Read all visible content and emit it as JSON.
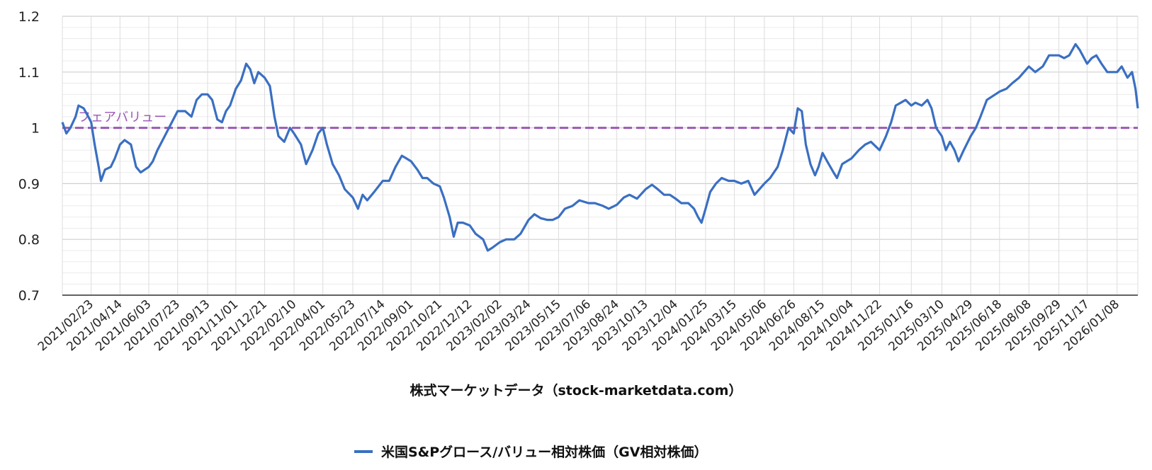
{
  "chart_data": {
    "type": "line",
    "xlabel": "株式マーケットデータ（stock-marketdata.com）",
    "ylabel": "",
    "ylim": [
      0.7,
      1.2
    ],
    "yticks": [
      "0.7",
      "0.8",
      "0.9",
      "1",
      "1.1",
      "1.2"
    ],
    "grid": true,
    "legend_position": "bottom",
    "x_tick_labels": [
      "2021/02/23",
      "2021/04/14",
      "2021/06/03",
      "2021/07/23",
      "2021/09/13",
      "2021/11/01",
      "2021/12/21",
      "2022/02/10",
      "2022/04/01",
      "2022/05/23",
      "2022/07/14",
      "2022/09/01",
      "2022/10/21",
      "2022/12/12",
      "2023/02/02",
      "2023/03/24",
      "2023/05/15",
      "2023/07/06",
      "2023/08/24",
      "2023/10/13",
      "2023/12/04",
      "2024/01/25",
      "2024/03/15",
      "2024/05/06",
      "2024/06/26",
      "2024/08/15",
      "2024/10/04",
      "2024/11/22",
      "2025/01/16",
      "2025/03/10",
      "2025/04/29",
      "2025/06/18",
      "2025/08/08",
      "2025/09/29",
      "2025/11/17",
      "2026/01/08"
    ],
    "reference_line": {
      "value": 1,
      "label": "フェアバリュー",
      "color": "#9b59b6"
    },
    "series": [
      {
        "name": "米国S&Pグロース/バリュー相対株価（GV相対株価）",
        "color": "#3a6fc2",
        "points": [
          [
            "2021/01/04",
            1.01
          ],
          [
            "2021/01/11",
            0.99
          ],
          [
            "2021/01/18",
            1.0
          ],
          [
            "2021/01/27",
            1.02
          ],
          [
            "2021/02/01",
            1.04
          ],
          [
            "2021/02/10",
            1.035
          ],
          [
            "2021/02/18",
            1.02
          ],
          [
            "2021/02/23",
            1.01
          ],
          [
            "2021/03/01",
            0.97
          ],
          [
            "2021/03/08",
            0.93
          ],
          [
            "2021/03/12",
            0.905
          ],
          [
            "2021/03/19",
            0.925
          ],
          [
            "2021/03/29",
            0.93
          ],
          [
            "2021/04/05",
            0.945
          ],
          [
            "2021/04/14",
            0.97
          ],
          [
            "2021/04/22",
            0.978
          ],
          [
            "2021/05/03",
            0.97
          ],
          [
            "2021/05/12",
            0.93
          ],
          [
            "2021/05/20",
            0.92
          ],
          [
            "2021/06/03",
            0.93
          ],
          [
            "2021/06/10",
            0.94
          ],
          [
            "2021/06/18",
            0.96
          ],
          [
            "2021/06/28",
            0.98
          ],
          [
            "2021/07/08",
            1.0
          ],
          [
            "2021/07/23",
            1.03
          ],
          [
            "2021/08/05",
            1.03
          ],
          [
            "2021/08/16",
            1.02
          ],
          [
            "2021/08/25",
            1.05
          ],
          [
            "2021/09/03",
            1.06
          ],
          [
            "2021/09/13",
            1.06
          ],
          [
            "2021/09/21",
            1.05
          ],
          [
            "2021/09/30",
            1.015
          ],
          [
            "2021/10/08",
            1.01
          ],
          [
            "2021/10/15",
            1.03
          ],
          [
            "2021/10/22",
            1.04
          ],
          [
            "2021/11/01",
            1.07
          ],
          [
            "2021/11/10",
            1.085
          ],
          [
            "2021/11/19",
            1.115
          ],
          [
            "2021/11/26",
            1.105
          ],
          [
            "2021/12/03",
            1.08
          ],
          [
            "2021/12/10",
            1.1
          ],
          [
            "2021/12/21",
            1.09
          ],
          [
            "2021/12/30",
            1.075
          ],
          [
            "2022/01/07",
            1.02
          ],
          [
            "2022/01/14",
            0.985
          ],
          [
            "2022/01/24",
            0.975
          ],
          [
            "2022/02/03",
            1.0
          ],
          [
            "2022/02/10",
            0.99
          ],
          [
            "2022/02/22",
            0.97
          ],
          [
            "2022/03/03",
            0.935
          ],
          [
            "2022/03/14",
            0.96
          ],
          [
            "2022/03/24",
            0.99
          ],
          [
            "2022/04/01",
            1.0
          ],
          [
            "2022/04/08",
            0.97
          ],
          [
            "2022/04/18",
            0.935
          ],
          [
            "2022/04/29",
            0.915
          ],
          [
            "2022/05/09",
            0.89
          ],
          [
            "2022/05/23",
            0.875
          ],
          [
            "2022/06/01",
            0.855
          ],
          [
            "2022/06/09",
            0.88
          ],
          [
            "2022/06/17",
            0.87
          ],
          [
            "2022/06/29",
            0.885
          ],
          [
            "2022/07/14",
            0.905
          ],
          [
            "2022/07/25",
            0.905
          ],
          [
            "2022/08/05",
            0.93
          ],
          [
            "2022/08/16",
            0.95
          ],
          [
            "2022/08/24",
            0.945
          ],
          [
            "2022/09/01",
            0.94
          ],
          [
            "2022/09/12",
            0.925
          ],
          [
            "2022/09/21",
            0.91
          ],
          [
            "2022/09/29",
            0.91
          ],
          [
            "2022/10/10",
            0.9
          ],
          [
            "2022/10/21",
            0.895
          ],
          [
            "2022/10/28",
            0.875
          ],
          [
            "2022/11/07",
            0.84
          ],
          [
            "2022/11/14",
            0.805
          ],
          [
            "2022/11/21",
            0.83
          ],
          [
            "2022/11/30",
            0.83
          ],
          [
            "2022/12/12",
            0.825
          ],
          [
            "2022/12/22",
            0.81
          ],
          [
            "2023/01/04",
            0.8
          ],
          [
            "2023/01/12",
            0.78
          ],
          [
            "2023/01/20",
            0.785
          ],
          [
            "2023/02/02",
            0.795
          ],
          [
            "2023/02/13",
            0.8
          ],
          [
            "2023/02/27",
            0.8
          ],
          [
            "2023/03/10",
            0.81
          ],
          [
            "2023/03/24",
            0.835
          ],
          [
            "2023/04/03",
            0.845
          ],
          [
            "2023/04/14",
            0.838
          ],
          [
            "2023/04/25",
            0.835
          ],
          [
            "2023/05/05",
            0.835
          ],
          [
            "2023/05/15",
            0.84
          ],
          [
            "2023/05/26",
            0.855
          ],
          [
            "2023/06/08",
            0.86
          ],
          [
            "2023/06/20",
            0.87
          ],
          [
            "2023/07/06",
            0.865
          ],
          [
            "2023/07/17",
            0.865
          ],
          [
            "2023/07/31",
            0.86
          ],
          [
            "2023/08/10",
            0.855
          ],
          [
            "2023/08/24",
            0.862
          ],
          [
            "2023/09/05",
            0.875
          ],
          [
            "2023/09/15",
            0.88
          ],
          [
            "2023/09/28",
            0.873
          ],
          [
            "2023/10/13",
            0.89
          ],
          [
            "2023/10/24",
            0.898
          ],
          [
            "2023/11/03",
            0.89
          ],
          [
            "2023/11/14",
            0.88
          ],
          [
            "2023/11/24",
            0.88
          ],
          [
            "2023/12/04",
            0.873
          ],
          [
            "2023/12/14",
            0.865
          ],
          [
            "2023/12/26",
            0.865
          ],
          [
            "2024/01/05",
            0.855
          ],
          [
            "2024/01/12",
            0.84
          ],
          [
            "2024/01/18",
            0.83
          ],
          [
            "2024/01/25",
            0.855
          ],
          [
            "2024/02/02",
            0.885
          ],
          [
            "2024/02/12",
            0.9
          ],
          [
            "2024/02/22",
            0.91
          ],
          [
            "2024/03/05",
            0.905
          ],
          [
            "2024/03/15",
            0.905
          ],
          [
            "2024/03/27",
            0.9
          ],
          [
            "2024/04/08",
            0.905
          ],
          [
            "2024/04/19",
            0.88
          ],
          [
            "2024/05/06",
            0.9
          ],
          [
            "2024/05/16",
            0.91
          ],
          [
            "2024/05/29",
            0.93
          ],
          [
            "2024/06/07",
            0.96
          ],
          [
            "2024/06/17",
            1.0
          ],
          [
            "2024/06/26",
            0.99
          ],
          [
            "2024/07/03",
            1.035
          ],
          [
            "2024/07/10",
            1.03
          ],
          [
            "2024/07/17",
            0.97
          ],
          [
            "2024/07/25",
            0.935
          ],
          [
            "2024/08/02",
            0.915
          ],
          [
            "2024/08/08",
            0.93
          ],
          [
            "2024/08/15",
            0.955
          ],
          [
            "2024/08/23",
            0.94
          ],
          [
            "2024/09/03",
            0.92
          ],
          [
            "2024/09/09",
            0.91
          ],
          [
            "2024/09/18",
            0.935
          ],
          [
            "2024/10/04",
            0.945
          ],
          [
            "2024/10/17",
            0.96
          ],
          [
            "2024/10/28",
            0.97
          ],
          [
            "2024/11/07",
            0.975
          ],
          [
            "2024/11/22",
            0.96
          ],
          [
            "2024/12/03",
            0.985
          ],
          [
            "2024/12/12",
            1.01
          ],
          [
            "2024/12/20",
            1.04
          ],
          [
            "2025/01/06",
            1.05
          ],
          [
            "2025/01/16",
            1.04
          ],
          [
            "2025/01/23",
            1.045
          ],
          [
            "2025/02/03",
            1.04
          ],
          [
            "2025/02/13",
            1.05
          ],
          [
            "2025/02/20",
            1.035
          ],
          [
            "2025/02/28",
            1.0
          ],
          [
            "2025/03/10",
            0.985
          ],
          [
            "2025/03/17",
            0.96
          ],
          [
            "2025/03/24",
            0.975
          ],
          [
            "2025/04/01",
            0.96
          ],
          [
            "2025/04/08",
            0.94
          ],
          [
            "2025/04/17",
            0.96
          ],
          [
            "2025/04/29",
            0.985
          ],
          [
            "2025/05/08",
            1.0
          ],
          [
            "2025/05/16",
            1.02
          ],
          [
            "2025/05/27",
            1.05
          ],
          [
            "2025/06/18",
            1.065
          ],
          [
            "2025/06/30",
            1.07
          ],
          [
            "2025/07/10",
            1.08
          ],
          [
            "2025/07/22",
            1.09
          ],
          [
            "2025/08/08",
            1.11
          ],
          [
            "2025/08/19",
            1.1
          ],
          [
            "2025/09/01",
            1.11
          ],
          [
            "2025/09/12",
            1.13
          ],
          [
            "2025/09/29",
            1.13
          ],
          [
            "2025/10/08",
            1.125
          ],
          [
            "2025/10/17",
            1.13
          ],
          [
            "2025/10/28",
            1.15
          ],
          [
            "2025/11/04",
            1.14
          ],
          [
            "2025/11/17",
            1.115
          ],
          [
            "2025/11/25",
            1.125
          ],
          [
            "2025/12/03",
            1.13
          ],
          [
            "2025/12/12",
            1.115
          ],
          [
            "2025/12/22",
            1.1
          ],
          [
            "2026/01/08",
            1.1
          ],
          [
            "2026/01/16",
            1.11
          ],
          [
            "2026/01/26",
            1.09
          ],
          [
            "2026/02/03",
            1.1
          ],
          [
            "2026/02/09",
            1.07
          ],
          [
            "2026/02/13",
            1.035
          ]
        ]
      }
    ]
  }
}
